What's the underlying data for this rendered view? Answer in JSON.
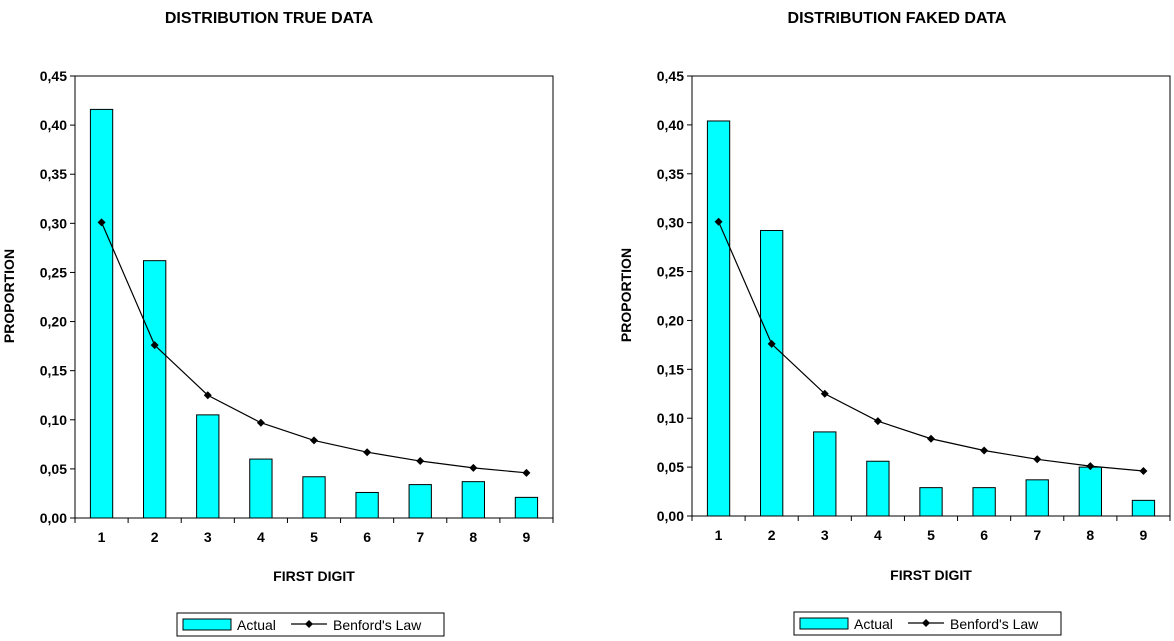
{
  "chart_data": [
    {
      "type": "bar",
      "title": "DISTRIBUTION TRUE DATA",
      "xlabel": "FIRST DIGIT",
      "ylabel": "PROPORTION",
      "categories": [
        "1",
        "2",
        "3",
        "4",
        "5",
        "6",
        "7",
        "8",
        "9"
      ],
      "ylim": [
        0,
        0.45
      ],
      "yticks": [
        "0,00",
        "0,05",
        "0,10",
        "0,15",
        "0,20",
        "0,25",
        "0,30",
        "0,35",
        "0,40",
        "0,45"
      ],
      "ytick_values": [
        0,
        0.05,
        0.1,
        0.15,
        0.2,
        0.25,
        0.3,
        0.35,
        0.4,
        0.45
      ],
      "grid": false,
      "legend_position": "bottom",
      "series": [
        {
          "name": "Actual",
          "kind": "bar",
          "color": "#00FFFF",
          "values": [
            0.416,
            0.262,
            0.105,
            0.06,
            0.042,
            0.026,
            0.034,
            0.037,
            0.021
          ]
        },
        {
          "name": "Benford's Law",
          "kind": "line",
          "color": "#000000",
          "values": [
            0.301,
            0.176,
            0.125,
            0.097,
            0.079,
            0.067,
            0.058,
            0.051,
            0.046
          ]
        }
      ]
    },
    {
      "type": "bar",
      "title": "DISTRIBUTION FAKED DATA",
      "xlabel": "FIRST DIGIT",
      "ylabel": "PROPORTION",
      "categories": [
        "1",
        "2",
        "3",
        "4",
        "5",
        "6",
        "7",
        "8",
        "9"
      ],
      "ylim": [
        0,
        0.45
      ],
      "yticks": [
        "0,00",
        "0,05",
        "0,10",
        "0,15",
        "0,20",
        "0,25",
        "0,30",
        "0,35",
        "0,40",
        "0,45"
      ],
      "ytick_values": [
        0,
        0.05,
        0.1,
        0.15,
        0.2,
        0.25,
        0.3,
        0.35,
        0.4,
        0.45
      ],
      "grid": false,
      "legend_position": "bottom",
      "series": [
        {
          "name": "Actual",
          "kind": "bar",
          "color": "#00FFFF",
          "values": [
            0.404,
            0.292,
            0.086,
            0.056,
            0.029,
            0.029,
            0.037,
            0.05,
            0.016
          ]
        },
        {
          "name": "Benford's Law",
          "kind": "line",
          "color": "#000000",
          "values": [
            0.301,
            0.176,
            0.125,
            0.097,
            0.079,
            0.067,
            0.058,
            0.051,
            0.046
          ]
        }
      ]
    }
  ]
}
